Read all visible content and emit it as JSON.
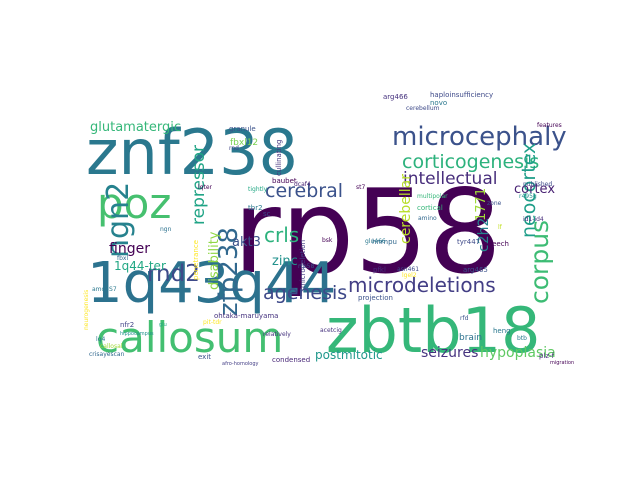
{
  "words": [
    {
      "text": "rp58",
      "color": "#440154"
    },
    {
      "text": "znf238",
      "color": "#2a788e"
    },
    {
      "text": "zbtb18",
      "color": "#35b779"
    },
    {
      "text": "1q43q44",
      "color": "#2c728e"
    },
    {
      "text": "callosum",
      "color": "#43bf71"
    },
    {
      "text": "poz",
      "color": "#46c06f"
    },
    {
      "text": "microcephaly",
      "color": "#3b528b"
    },
    {
      "text": "corticogenesis",
      "color": "#2db27d"
    },
    {
      "text": "microdeletions",
      "color": "#433e85"
    },
    {
      "text": "ngn2",
      "color": "#26828e"
    },
    {
      "text": "rnd2",
      "color": "#3e4a89"
    },
    {
      "text": "corpus",
      "color": "#3dbc74"
    },
    {
      "text": "zfp238",
      "color": "#31688e"
    },
    {
      "text": "neocortex",
      "color": "#1f9e89"
    },
    {
      "text": "intellectual",
      "color": "#472d7b"
    },
    {
      "text": "cerebral",
      "color": "#3b528b"
    },
    {
      "text": "agenesis",
      "color": "#3e4989"
    },
    {
      "text": "crls",
      "color": "#2db27d"
    },
    {
      "text": "repressor",
      "color": "#20a486"
    },
    {
      "text": "glutamatergic",
      "color": "#35b779"
    },
    {
      "text": "seizures",
      "color": "#46337f"
    },
    {
      "text": "hypoplasia",
      "color": "#5ec962"
    },
    {
      "text": "postmitotic",
      "color": "#1f988b"
    },
    {
      "text": "disability",
      "color": "#8fd744"
    },
    {
      "text": "cerebellar",
      "color": "#b8de29"
    },
    {
      "text": "c2h2",
      "color": "#25848e"
    },
    {
      "text": "finger",
      "color": "#440154"
    },
    {
      "text": "zinc",
      "color": "#21918c"
    },
    {
      "text": "akt3",
      "color": "#3b528b"
    },
    {
      "text": "1q44-ter",
      "color": "#22a884"
    },
    {
      "text": "cortex",
      "color": "#482173"
    },
    {
      "text": "1771",
      "color": "#a0da39"
    },
    {
      "text": "haploinsufficiency",
      "color": "#3e4a89"
    },
    {
      "text": "arg466",
      "color": "#46327e"
    },
    {
      "text": "cerebellum",
      "color": "#3e4a89"
    },
    {
      "text": "novo",
      "color": "#2a788e"
    },
    {
      "text": "granule",
      "color": "#3b528b"
    },
    {
      "text": "rnd",
      "color": "#414487"
    },
    {
      "text": "baubet",
      "color": "#440154"
    },
    {
      "text": "cullinating",
      "color": "#46337f"
    },
    {
      "text": "tyr447",
      "color": "#3e4a89"
    },
    {
      "text": "hnrnpu",
      "color": "#31688e"
    },
    {
      "text": "glu466",
      "color": "#2a788e"
    },
    {
      "text": "speech",
      "color": "#440154"
    },
    {
      "text": "pfkl",
      "color": "#472d7b"
    },
    {
      "text": "projection",
      "color": "#3b528b"
    },
    {
      "text": "brain",
      "color": "#2c728e"
    },
    {
      "text": "heng",
      "color": "#2a788e"
    },
    {
      "text": "plz-f",
      "color": "#472d7b"
    },
    {
      "text": "ohtaka-maruyama",
      "color": "#46337f"
    },
    {
      "text": "nfr2",
      "color": "#414487"
    },
    {
      "text": "exit",
      "color": "#3b528b"
    },
    {
      "text": "condensed",
      "color": "#482878"
    },
    {
      "text": "published",
      "color": "#3e4a89"
    },
    {
      "text": "r495g",
      "color": "#21918c"
    },
    {
      "text": "id1-id4",
      "color": "#472d7b"
    },
    {
      "text": "microdeletion",
      "color": "#433e85"
    },
    {
      "text": "zone",
      "color": "#3b528b"
    },
    {
      "text": "fbxl",
      "color": "#31688e"
    },
    {
      "text": "acetcig",
      "color": "#46327e"
    },
    {
      "text": "features",
      "color": "#440154"
    },
    {
      "text": "btb",
      "color": "#287c8e"
    },
    {
      "text": "migration",
      "color": "#440154"
    },
    {
      "text": "dcaf4",
      "color": "#482475"
    },
    {
      "text": "st7",
      "color": "#440154"
    },
    {
      "text": "asn461",
      "color": "#3e4989"
    },
    {
      "text": "cortical",
      "color": "#35b779"
    },
    {
      "text": "rrp58",
      "color": "#3b528b"
    },
    {
      "text": "pit-tdr",
      "color": "#fde725"
    },
    {
      "text": "bsk",
      "color": "#440154"
    },
    {
      "text": "penetrance",
      "color": "#fde725"
    },
    {
      "text": "fbxl12",
      "color": "#7ad151"
    },
    {
      "text": "amo5S7",
      "color": "#2a788e"
    },
    {
      "text": "crisayescan",
      "color": "#31688e"
    },
    {
      "text": "glu",
      "color": "#22a884"
    },
    {
      "text": "lq4",
      "color": "#2a788e"
    },
    {
      "text": "arg465",
      "color": "#3b528b"
    },
    {
      "text": "multipolar",
      "color": "#35b779"
    },
    {
      "text": "neurogenesis",
      "color": "#fde725"
    },
    {
      "text": "tightly",
      "color": "#22a884"
    },
    {
      "text": "callosal",
      "color": "#a0da39"
    },
    {
      "text": "lf",
      "color": "#c2df23"
    },
    {
      "text": "afro-homology",
      "color": "#433e85"
    },
    {
      "text": "lgel2",
      "color": "#fde725"
    },
    {
      "text": "lqter",
      "color": "#440154"
    },
    {
      "text": "sc",
      "color": "#3e4989"
    },
    {
      "text": "ngn",
      "color": "#2c728e"
    },
    {
      "text": "hippocampus",
      "color": "#21918c"
    },
    {
      "text": "amino",
      "color": "#31688e"
    },
    {
      "text": "tbr2",
      "color": "#2a788e"
    },
    {
      "text": "relatively",
      "color": "#46337f"
    },
    {
      "text": "rfd",
      "color": "#3b528b"
    }
  ]
}
